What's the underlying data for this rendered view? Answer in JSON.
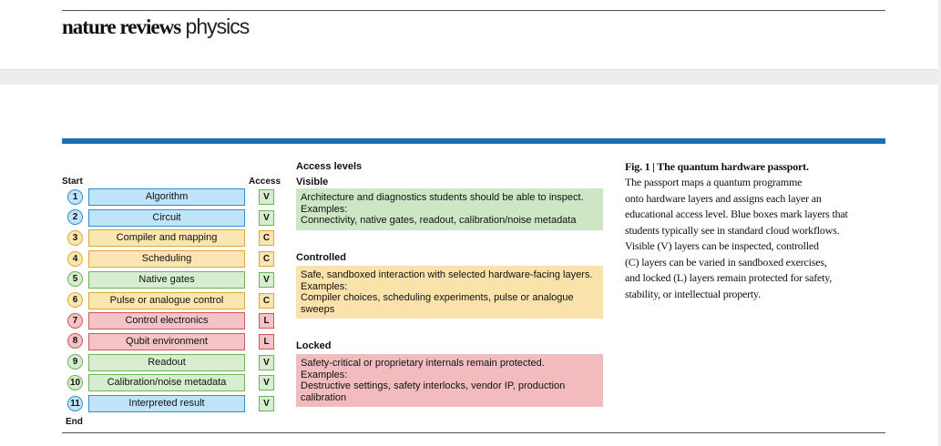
{
  "header": {
    "brand_bold": "nature reviews",
    "brand_light": "physics"
  },
  "figure": {
    "start_label": "Start",
    "end_label": "End",
    "access_label": "Access",
    "rows": [
      {
        "number": "1",
        "label": "Algorithm",
        "access": "V",
        "color": "blue",
        "access_color": "green"
      },
      {
        "number": "2",
        "label": "Circuit",
        "access": "V",
        "color": "blue",
        "access_color": "green"
      },
      {
        "number": "3",
        "label": "Compiler and mapping",
        "access": "C",
        "color": "yellow",
        "access_color": "yellow"
      },
      {
        "number": "4",
        "label": "Scheduling",
        "access": "C",
        "color": "yellow",
        "access_color": "yellow"
      },
      {
        "number": "5",
        "label": "Native gates",
        "access": "V",
        "color": "green",
        "access_color": "green"
      },
      {
        "number": "6",
        "label": "Pulse or analogue control",
        "access": "C",
        "color": "yellow",
        "access_color": "yellow"
      },
      {
        "number": "7",
        "label": "Control electronics",
        "access": "L",
        "color": "red",
        "access_color": "red"
      },
      {
        "number": "8",
        "label": "Qubit environment",
        "access": "L",
        "color": "red",
        "access_color": "red"
      },
      {
        "number": "9",
        "label": "Readout",
        "access": "V",
        "color": "green",
        "access_color": "green"
      },
      {
        "number": "10",
        "label": "Calibration/noise metadata",
        "access": "V",
        "color": "green",
        "access_color": "green"
      },
      {
        "number": "11",
        "label": "Interpreted result",
        "access": "V",
        "color": "blue",
        "access_color": "green"
      }
    ],
    "levels_title": "Access levels",
    "levels": [
      {
        "name": "Visible",
        "color": "green",
        "lines": [
          "Architecture and diagnostics students should be able to inspect.",
          "Examples:",
          "Connectivity, native gates, readout, calibration/noise metadata"
        ]
      },
      {
        "name": "Controlled",
        "color": "yellow",
        "lines": [
          "Safe, sandboxed interaction with selected hardware-facing layers.",
          "Examples:",
          "Compiler choices, scheduling experiments, pulse or analogue sweeps"
        ]
      },
      {
        "name": "Locked",
        "color": "red",
        "lines": [
          "Safety-critical or proprietary internals remain protected.",
          "Examples:",
          "Destructive settings, safety interlocks, vendor IP, production calibration"
        ]
      }
    ]
  },
  "caption": {
    "title": "Fig. 1 | The quantum hardware passport.",
    "lines": [
      "The passport maps a quantum programme",
      "onto hardware layers and assigns each layer an",
      "educational access level. Blue boxes mark layers that",
      "students typically see in standard cloud workflows.",
      "Visible (V) layers can be inspected, controlled",
      "(C) layers can be varied in sandboxed exercises,",
      "and locked (L) layers remain protected for safety,",
      "stability, or intellectual property."
    ]
  }
}
